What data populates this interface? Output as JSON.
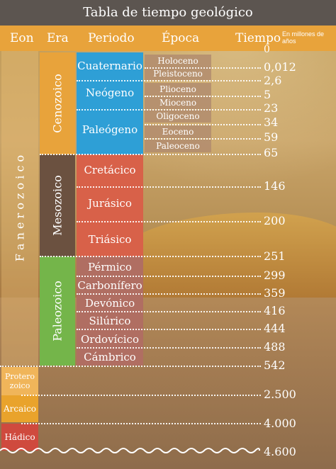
{
  "title": "Tabla de tiempo geológico",
  "headers": {
    "eon": "Eon",
    "era": "Era",
    "periodo": "Periodo",
    "epoca": "Época",
    "tiempo": "Tiempo",
    "units": "En millones de años"
  },
  "eons": {
    "fanerozoico": "F a n e r o z o i c o",
    "proterozoico": "Protero zoico",
    "arcaico": "Arcaico",
    "hadico": "Hádico"
  },
  "eras": {
    "cenozoico": "Cenozoico",
    "mesozoico": "Mesozoico",
    "paleozoico": "Paleozoico"
  },
  "periods": [
    "Cuaternario",
    "Neógeno",
    "Paleógeno",
    "Cretácico",
    "Jurásico",
    "Triásico",
    "Pérmico",
    "Carbonífero",
    "Devónico",
    "Silúrico",
    "Ordovícico",
    "Cámbrico"
  ],
  "epochs": [
    "Holoceno",
    "Pleistoceno",
    "Plioceno",
    "Mioceno",
    "Oligoceno",
    "Eoceno",
    "Paleoceno"
  ],
  "times": [
    "0",
    "0,012",
    "2,6",
    "5",
    "23",
    "34",
    "59",
    "65",
    "146",
    "200",
    "251",
    "299",
    "359",
    "416",
    "444",
    "488",
    "542",
    "2.500",
    "4.000",
    "4.600"
  ],
  "colors": {
    "title_bg": "#5c5550",
    "header_bg": "#e8a33b",
    "cenozoico": "#e8a33b",
    "mesozoico": "#6b5140",
    "paleozoico": "#74b54a",
    "cuaternario_group": "#2e9fd6",
    "mesozoic_periods": "#d86149",
    "paleozoic_periods": "#b06e62",
    "proterozoico": "#f0b55a",
    "arcaico": "#e9a32c",
    "hadico": "#cf4a3e"
  }
}
